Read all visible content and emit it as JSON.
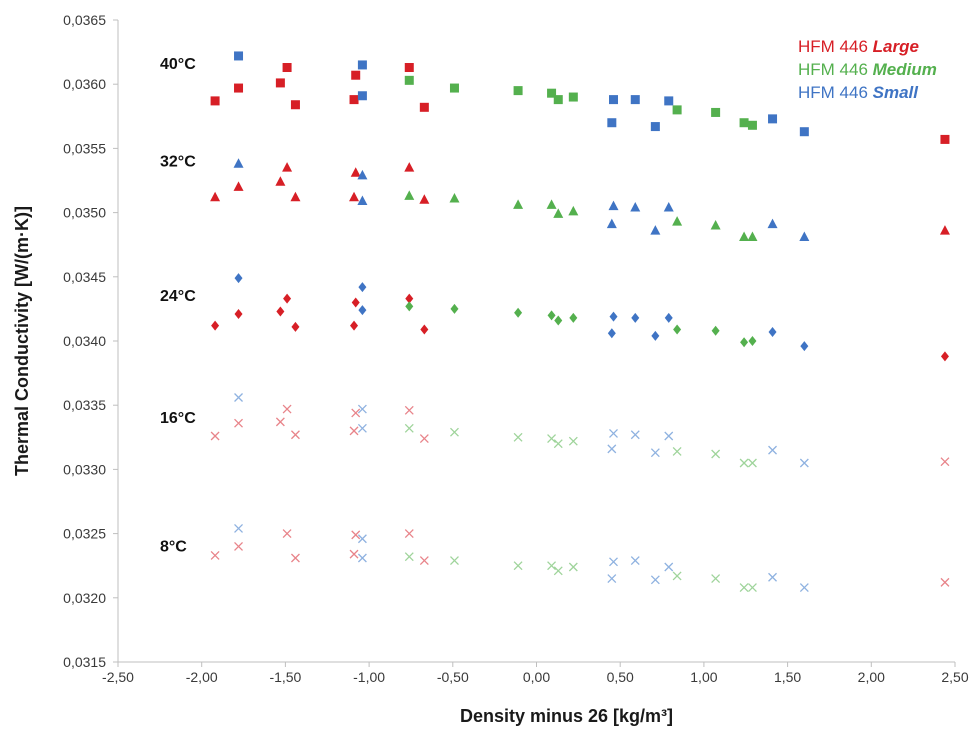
{
  "chart_data": {
    "type": "scatter",
    "xlabel": "Density minus 26 [kg/m³]",
    "ylabel": "Thermal Conductivity [W/(m·K)]",
    "xlim": [
      -2.5,
      2.5
    ],
    "ylim": [
      0.0315,
      0.0365
    ],
    "x_ticks": [
      "-2,50",
      "-2,00",
      "-1,50",
      "-1,00",
      "-0,50",
      "0,00",
      "0,50",
      "1,00",
      "1,50",
      "2,00",
      "2,50"
    ],
    "y_ticks": [
      "0,0315",
      "0,0320",
      "0,0325",
      "0,0330",
      "0,0335",
      "0,0340",
      "0,0345",
      "0,0350",
      "0,0355",
      "0,0360",
      "0,0365"
    ],
    "grid": false,
    "legend_position": "top-right",
    "temperature_labels": [
      {
        "text": "40°C",
        "y": 0.03612
      },
      {
        "text": "32°C",
        "y": 0.03536
      },
      {
        "text": "24°C",
        "y": 0.03431
      },
      {
        "text": "16°C",
        "y": 0.03336
      },
      {
        "text": "8°C",
        "y": 0.03236
      }
    ],
    "series": [
      {
        "name": "HFM 446 Large",
        "legend_prefix": "HFM 446",
        "legend_suffix": "Large",
        "color": "#d71f26",
        "faded_color": "#e8848a",
        "groups": [
          {
            "temperature": "40°C",
            "marker": "square",
            "points": [
              [
                -1.92,
                0.03587
              ],
              [
                -1.78,
                0.03597
              ],
              [
                -1.53,
                0.03601
              ],
              [
                -1.49,
                0.03613
              ],
              [
                -1.44,
                0.03584
              ],
              [
                -1.09,
                0.03588
              ],
              [
                -1.08,
                0.03607
              ],
              [
                -0.76,
                0.03613
              ],
              [
                -0.67,
                0.03582
              ],
              [
                2.44,
                0.03557
              ]
            ]
          },
          {
            "temperature": "32°C",
            "marker": "triangle",
            "points": [
              [
                -1.92,
                0.03512
              ],
              [
                -1.78,
                0.0352
              ],
              [
                -1.53,
                0.03524
              ],
              [
                -1.49,
                0.03535
              ],
              [
                -1.44,
                0.03512
              ],
              [
                -1.09,
                0.03512
              ],
              [
                -1.08,
                0.03531
              ],
              [
                -0.76,
                0.03535
              ],
              [
                -0.67,
                0.0351
              ],
              [
                2.44,
                0.03486
              ]
            ]
          },
          {
            "temperature": "24°C",
            "marker": "diamond",
            "points": [
              [
                -1.92,
                0.03412
              ],
              [
                -1.78,
                0.03421
              ],
              [
                -1.53,
                0.03423
              ],
              [
                -1.49,
                0.03433
              ],
              [
                -1.44,
                0.03411
              ],
              [
                -1.09,
                0.03412
              ],
              [
                -1.08,
                0.0343
              ],
              [
                -0.76,
                0.03433
              ],
              [
                -0.67,
                0.03409
              ],
              [
                2.44,
                0.03388
              ]
            ]
          },
          {
            "temperature": "16°C",
            "marker": "x",
            "points": [
              [
                -1.92,
                0.03326
              ],
              [
                -1.78,
                0.03336
              ],
              [
                -1.53,
                0.03337
              ],
              [
                -1.49,
                0.03347
              ],
              [
                -1.44,
                0.03327
              ],
              [
                -1.09,
                0.0333
              ],
              [
                -1.08,
                0.03344
              ],
              [
                -0.76,
                0.03346
              ],
              [
                -0.67,
                0.03324
              ],
              [
                2.44,
                0.03306
              ]
            ]
          },
          {
            "temperature": "8°C",
            "marker": "x",
            "points": [
              [
                -1.92,
                0.03233
              ],
              [
                -1.78,
                0.0324
              ],
              [
                -1.49,
                0.0325
              ],
              [
                -1.44,
                0.03231
              ],
              [
                -1.09,
                0.03234
              ],
              [
                -1.08,
                0.03249
              ],
              [
                -0.76,
                0.0325
              ],
              [
                -0.67,
                0.03229
              ],
              [
                2.44,
                0.03212
              ]
            ]
          }
        ]
      },
      {
        "name": "HFM 446 Medium",
        "legend_prefix": "HFM 446",
        "legend_suffix": "Medium",
        "color": "#54b04e",
        "faded_color": "#9fd49b",
        "groups": [
          {
            "temperature": "40°C",
            "marker": "square",
            "points": [
              [
                -0.76,
                0.03603
              ],
              [
                -0.49,
                0.03597
              ],
              [
                -0.11,
                0.03595
              ],
              [
                0.09,
                0.03593
              ],
              [
                0.13,
                0.03588
              ],
              [
                0.22,
                0.0359
              ],
              [
                0.84,
                0.0358
              ],
              [
                1.07,
                0.03578
              ],
              [
                1.24,
                0.0357
              ],
              [
                1.29,
                0.03568
              ]
            ]
          },
          {
            "temperature": "32°C",
            "marker": "triangle",
            "points": [
              [
                -0.76,
                0.03513
              ],
              [
                -0.49,
                0.03511
              ],
              [
                -0.11,
                0.03506
              ],
              [
                0.09,
                0.03506
              ],
              [
                0.13,
                0.03499
              ],
              [
                0.22,
                0.03501
              ],
              [
                0.84,
                0.03493
              ],
              [
                1.07,
                0.0349
              ],
              [
                1.24,
                0.03481
              ],
              [
                1.29,
                0.03481
              ]
            ]
          },
          {
            "temperature": "24°C",
            "marker": "diamond",
            "points": [
              [
                -0.76,
                0.03427
              ],
              [
                -0.49,
                0.03425
              ],
              [
                -0.11,
                0.03422
              ],
              [
                0.09,
                0.0342
              ],
              [
                0.13,
                0.03416
              ],
              [
                0.22,
                0.03418
              ],
              [
                0.84,
                0.03409
              ],
              [
                1.07,
                0.03408
              ],
              [
                1.24,
                0.03399
              ],
              [
                1.29,
                0.034
              ]
            ]
          },
          {
            "temperature": "16°C",
            "marker": "x",
            "points": [
              [
                -0.76,
                0.03332
              ],
              [
                -0.49,
                0.03329
              ],
              [
                -0.11,
                0.03325
              ],
              [
                0.09,
                0.03324
              ],
              [
                0.13,
                0.0332
              ],
              [
                0.22,
                0.03322
              ],
              [
                0.84,
                0.03314
              ],
              [
                1.07,
                0.03312
              ],
              [
                1.24,
                0.03305
              ],
              [
                1.29,
                0.03305
              ]
            ]
          },
          {
            "temperature": "8°C",
            "marker": "x",
            "points": [
              [
                -0.76,
                0.03232
              ],
              [
                -0.49,
                0.03229
              ],
              [
                -0.11,
                0.03225
              ],
              [
                0.09,
                0.03225
              ],
              [
                0.13,
                0.03221
              ],
              [
                0.22,
                0.03224
              ],
              [
                0.84,
                0.03217
              ],
              [
                1.07,
                0.03215
              ],
              [
                1.24,
                0.03208
              ],
              [
                1.29,
                0.03208
              ]
            ]
          }
        ]
      },
      {
        "name": "HFM 446 Small",
        "legend_prefix": "HFM 446",
        "legend_suffix": "Small",
        "color": "#3f74c4",
        "faded_color": "#8fb2e0",
        "groups": [
          {
            "temperature": "40°C",
            "marker": "square",
            "points": [
              [
                -1.78,
                0.03622
              ],
              [
                -1.04,
                0.03615
              ],
              [
                -1.04,
                0.03591
              ],
              [
                0.45,
                0.0357
              ],
              [
                0.46,
                0.03588
              ],
              [
                0.59,
                0.03588
              ],
              [
                0.71,
                0.03567
              ],
              [
                0.79,
                0.03587
              ],
              [
                1.41,
                0.03573
              ],
              [
                1.6,
                0.03563
              ]
            ]
          },
          {
            "temperature": "32°C",
            "marker": "triangle",
            "points": [
              [
                -1.78,
                0.03538
              ],
              [
                -1.04,
                0.03529
              ],
              [
                -1.04,
                0.03509
              ],
              [
                0.45,
                0.03491
              ],
              [
                0.46,
                0.03505
              ],
              [
                0.59,
                0.03504
              ],
              [
                0.71,
                0.03486
              ],
              [
                0.79,
                0.03504
              ],
              [
                1.41,
                0.03491
              ],
              [
                1.6,
                0.03481
              ]
            ]
          },
          {
            "temperature": "24°C",
            "marker": "diamond",
            "points": [
              [
                -1.78,
                0.03449
              ],
              [
                -1.04,
                0.03442
              ],
              [
                -1.04,
                0.03424
              ],
              [
                0.45,
                0.03406
              ],
              [
                0.46,
                0.03419
              ],
              [
                0.59,
                0.03418
              ],
              [
                0.71,
                0.03404
              ],
              [
                0.79,
                0.03418
              ],
              [
                1.41,
                0.03407
              ],
              [
                1.6,
                0.03396
              ]
            ]
          },
          {
            "temperature": "16°C",
            "marker": "x",
            "points": [
              [
                -1.78,
                0.03356
              ],
              [
                -1.04,
                0.03347
              ],
              [
                -1.04,
                0.03332
              ],
              [
                0.45,
                0.03316
              ],
              [
                0.46,
                0.03328
              ],
              [
                0.59,
                0.03327
              ],
              [
                0.71,
                0.03313
              ],
              [
                0.79,
                0.03326
              ],
              [
                1.41,
                0.03315
              ],
              [
                1.6,
                0.03305
              ]
            ]
          },
          {
            "temperature": "8°C",
            "marker": "x",
            "points": [
              [
                -1.78,
                0.03254
              ],
              [
                -1.04,
                0.03246
              ],
              [
                -1.04,
                0.03231
              ],
              [
                0.45,
                0.03215
              ],
              [
                0.46,
                0.03228
              ],
              [
                0.59,
                0.03229
              ],
              [
                0.71,
                0.03214
              ],
              [
                0.79,
                0.03224
              ],
              [
                1.41,
                0.03216
              ],
              [
                1.6,
                0.03208
              ]
            ]
          }
        ]
      }
    ]
  }
}
